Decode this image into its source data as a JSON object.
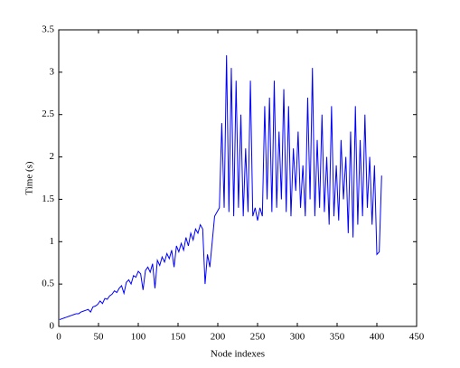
{
  "chart_data": {
    "type": "line",
    "x_label": "Node indexes",
    "y_label": "Time (s)",
    "x": [
      1,
      4,
      7,
      10,
      13,
      16,
      19,
      22,
      25,
      28,
      31,
      34,
      37,
      40,
      43,
      46,
      49,
      52,
      55,
      58,
      61,
      64,
      67,
      70,
      73,
      76,
      79,
      82,
      85,
      88,
      91,
      94,
      97,
      100,
      103,
      106,
      109,
      112,
      115,
      118,
      121,
      124,
      127,
      130,
      133,
      136,
      139,
      142,
      145,
      148,
      151,
      154,
      157,
      160,
      163,
      166,
      169,
      172,
      175,
      178,
      181,
      184,
      187,
      190,
      193,
      196,
      199,
      202,
      205,
      208,
      211,
      214,
      217,
      220,
      223,
      226,
      229,
      232,
      235,
      238,
      241,
      244,
      247,
      250,
      253,
      256,
      259,
      262,
      265,
      268,
      271,
      274,
      277,
      280,
      283,
      286,
      289,
      292,
      295,
      298,
      301,
      304,
      307,
      310,
      313,
      316,
      319,
      322,
      325,
      328,
      331,
      334,
      337,
      340,
      343,
      346,
      349,
      352,
      355,
      358,
      361,
      364,
      367,
      370,
      373,
      376,
      379,
      382,
      385,
      388,
      391,
      394,
      397,
      400,
      403,
      406
    ],
    "values": [
      0.08,
      0.09,
      0.1,
      0.11,
      0.12,
      0.13,
      0.14,
      0.15,
      0.15,
      0.17,
      0.18,
      0.19,
      0.2,
      0.17,
      0.23,
      0.24,
      0.26,
      0.3,
      0.27,
      0.33,
      0.32,
      0.36,
      0.38,
      0.42,
      0.4,
      0.45,
      0.48,
      0.39,
      0.52,
      0.55,
      0.5,
      0.6,
      0.58,
      0.65,
      0.62,
      0.43,
      0.66,
      0.7,
      0.64,
      0.74,
      0.45,
      0.78,
      0.72,
      0.82,
      0.76,
      0.86,
      0.8,
      0.9,
      0.7,
      0.95,
      0.88,
      0.98,
      0.9,
      1.05,
      0.95,
      1.1,
      1.02,
      1.15,
      1.1,
      1.2,
      1.15,
      0.5,
      0.85,
      0.7,
      1.0,
      1.3,
      1.35,
      1.4,
      2.4,
      1.4,
      3.2,
      1.35,
      3.05,
      1.3,
      2.9,
      1.4,
      2.5,
      1.3,
      2.1,
      1.35,
      2.9,
      1.3,
      1.4,
      1.25,
      1.4,
      1.3,
      2.6,
      1.5,
      2.7,
      1.35,
      2.9,
      1.4,
      2.3,
      1.5,
      2.8,
      1.35,
      2.6,
      1.3,
      2.1,
      1.6,
      2.3,
      1.4,
      1.9,
      1.3,
      2.7,
      1.5,
      3.05,
      1.3,
      2.2,
      1.4,
      2.5,
      1.35,
      2.0,
      1.2,
      2.6,
      1.3,
      1.9,
      1.25,
      2.2,
      1.5,
      2.0,
      1.1,
      2.3,
      1.05,
      2.6,
      1.2,
      2.2,
      1.3,
      2.5,
      1.4,
      2.0,
      1.2,
      1.9,
      0.85,
      0.88,
      1.78
    ],
    "color": "#0000ff",
    "xlim": [
      0,
      450
    ],
    "xticks": [
      0,
      50,
      100,
      150,
      200,
      250,
      300,
      350,
      400,
      450
    ],
    "ylim": [
      0,
      3.5
    ],
    "yticks": [
      0,
      0.5,
      1,
      1.5,
      2,
      2.5,
      3,
      3.5
    ],
    "grid": false
  }
}
